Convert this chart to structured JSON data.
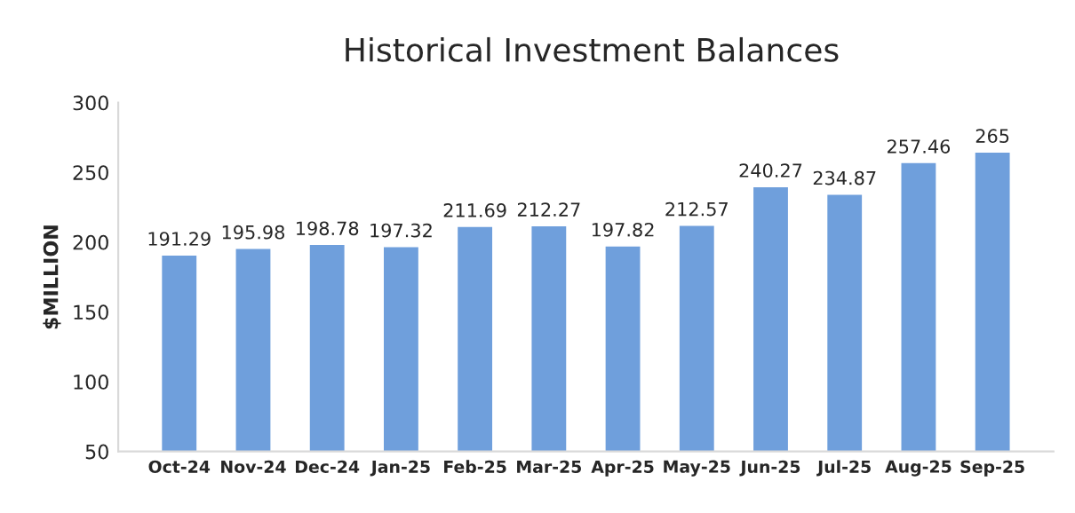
{
  "chart_data": {
    "type": "bar",
    "title": "Historical Investment Balances",
    "ylabel": "$MILLION",
    "categories": [
      "Oct-24",
      "Nov-24",
      "Dec-24",
      "Jan-25",
      "Feb-25",
      "Mar-25",
      "Apr-25",
      "May-25",
      "Jun-25",
      "Jul-25",
      "Aug-25",
      "Sep-25"
    ],
    "values": [
      191.29,
      195.98,
      198.78,
      197.32,
      211.69,
      212.27,
      197.82,
      212.57,
      240.27,
      234.87,
      257.46,
      265
    ],
    "color": "#6f9fdc",
    "ylim": [
      50,
      300
    ],
    "yticks": [
      50,
      100,
      150,
      200,
      250,
      300
    ],
    "grid": false,
    "data_labels": true
  }
}
